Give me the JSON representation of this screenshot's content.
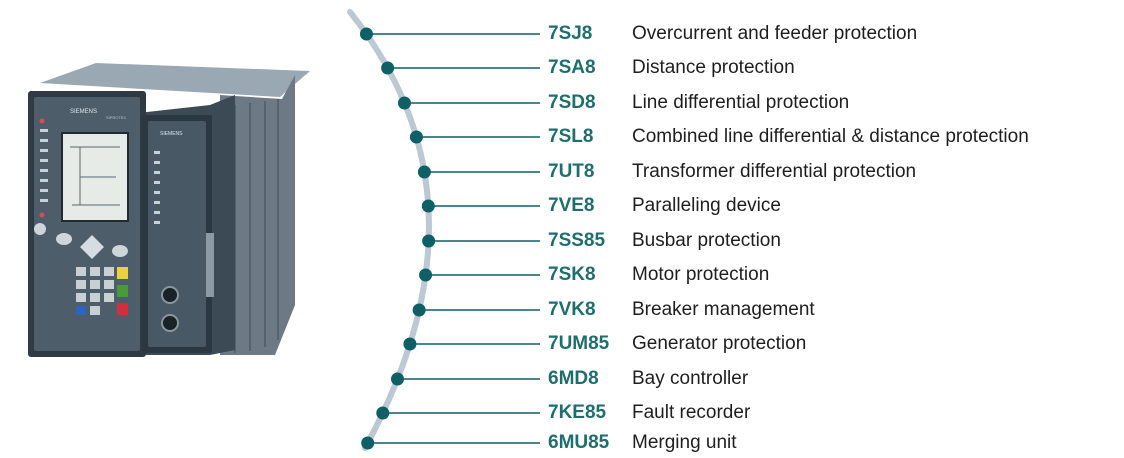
{
  "device": {
    "brand_label": "SIEMENS",
    "series_label": "SIPROTEC"
  },
  "colors": {
    "accent": "#1f6e6e",
    "dot": "#0e5f66",
    "arc": "#bcc9d4",
    "text": "#1e1e1e"
  },
  "products": [
    {
      "code": "7SJ8",
      "description": "Overcurrent and feeder protection"
    },
    {
      "code": "7SA8",
      "description": "Distance protection"
    },
    {
      "code": "7SD8",
      "description": "Line differential protection"
    },
    {
      "code": "7SL8",
      "description": "Combined line differential & distance protection"
    },
    {
      "code": "7UT8",
      "description": "Transformer differential protection"
    },
    {
      "code": "7VE8",
      "description": "Paralleling device"
    },
    {
      "code": "7SS85",
      "description": "Busbar protection"
    },
    {
      "code": "7SK8",
      "description": "Motor protection"
    },
    {
      "code": "7VK8",
      "description": "Breaker management"
    },
    {
      "code": "7UM85",
      "description": "Generator protection"
    },
    {
      "code": "6MD8",
      "description": "Bay controller"
    },
    {
      "code": "7KE85",
      "description": "Fault recorder"
    },
    {
      "code": "6MU85",
      "description": "Merging unit"
    }
  ]
}
